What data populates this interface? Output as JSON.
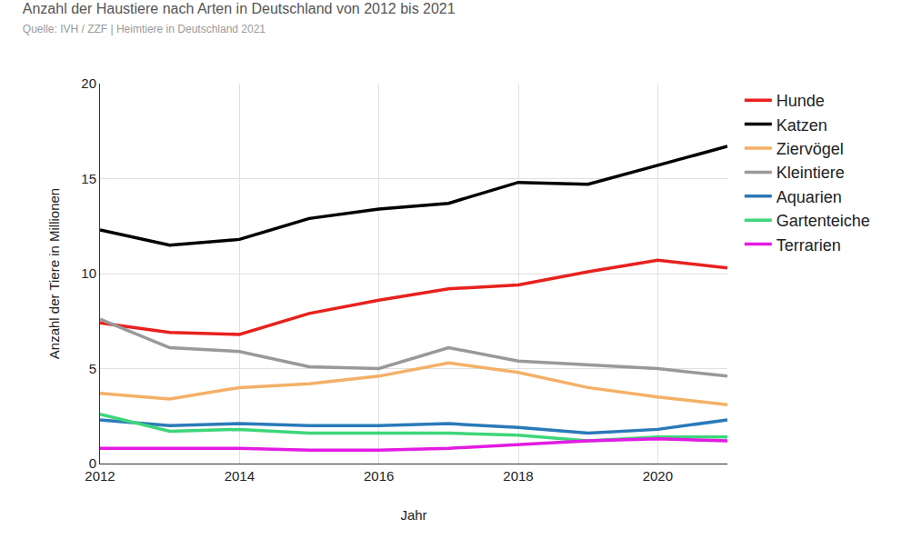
{
  "chart_data": {
    "type": "line",
    "title": "Anzahl der Haustiere nach Arten in Deutschland von 2012 bis 2021",
    "subtitle": "Quelle: IVH / ZZF | Heimtiere in Deutschland 2021",
    "x_label": "Jahr",
    "y_label": "Anzahl der Tiere in Millionen",
    "x": [
      2012,
      2013,
      2014,
      2015,
      2016,
      2017,
      2018,
      2019,
      2020,
      2021
    ],
    "series": [
      {
        "name": "Hunde",
        "color": "#e8211d",
        "values": [
          7.4,
          6.9,
          6.8,
          7.9,
          8.6,
          9.2,
          9.4,
          10.1,
          10.7,
          10.3
        ]
      },
      {
        "name": "Katzen",
        "color": "#000000",
        "values": [
          12.3,
          11.5,
          11.8,
          12.9,
          13.4,
          13.7,
          14.8,
          14.7,
          15.7,
          16.7
        ]
      },
      {
        "name": "Ziervögel",
        "color": "#f4b066",
        "values": [
          3.7,
          3.4,
          4.0,
          4.2,
          4.6,
          5.3,
          4.8,
          4.0,
          3.5,
          3.1
        ]
      },
      {
        "name": "Kleintiere",
        "color": "#999999",
        "values": [
          7.6,
          6.1,
          5.9,
          5.1,
          5.0,
          6.1,
          5.4,
          5.2,
          5.0,
          4.6
        ]
      },
      {
        "name": "Aquarien",
        "color": "#2a7ab9",
        "values": [
          2.3,
          2.0,
          2.1,
          2.0,
          2.0,
          2.1,
          1.9,
          1.6,
          1.8,
          2.3
        ]
      },
      {
        "name": "Gartenteiche",
        "color": "#3ed67a",
        "values": [
          2.6,
          1.7,
          1.8,
          1.6,
          1.6,
          1.6,
          1.5,
          1.2,
          1.4,
          1.4
        ]
      },
      {
        "name": "Terrarien",
        "color": "#e31be3",
        "values": [
          0.8,
          0.8,
          0.8,
          0.7,
          0.7,
          0.8,
          1.0,
          1.2,
          1.3,
          1.2
        ]
      }
    ],
    "xlim": [
      2012,
      2021
    ],
    "xticks": [
      2012,
      2014,
      2016,
      2018,
      2020
    ],
    "ylim": [
      0,
      20
    ],
    "yticks": [
      0,
      5,
      10,
      15,
      20
    ],
    "grid": true,
    "legend": "right"
  }
}
